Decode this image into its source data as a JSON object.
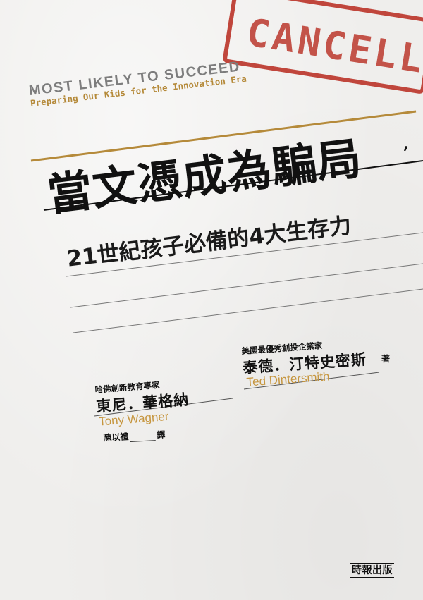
{
  "stamp": {
    "text": "CANCELLE"
  },
  "cover": {
    "en_title": "MOST LIKELY TO SUCCEED",
    "en_subtitle": "Preparing Our Kids for the Innovation Era",
    "main_title": "當文憑成為騙局",
    "main_title_mark": ",",
    "subtitle": "21世紀孩子必備的4大生存力"
  },
  "authors": [
    {
      "role": "哈佛創新教育專家",
      "name_zh": "東尼．華格納",
      "name_en": "Tony Wagner"
    },
    {
      "role": "美國最優秀創投企業家",
      "name_zh": "泰德．汀特史密斯",
      "name_en": "Ted Dintersmith"
    }
  ],
  "author_suffix": "著",
  "translator": {
    "name": "陳以禮",
    "suffix": "譯"
  },
  "publisher": "時報出版",
  "colors": {
    "stamp_red": "#c0463c",
    "accent_gold": "#b58a3a",
    "text_black": "#111111"
  }
}
